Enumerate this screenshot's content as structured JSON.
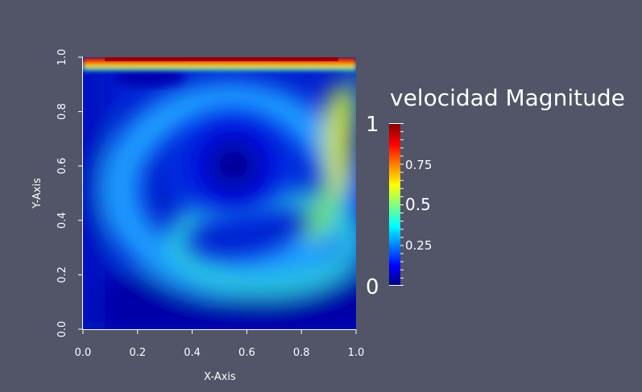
{
  "plot": {
    "x_axis_title": "X-Axis",
    "y_axis_title": "Y-Axis",
    "x_ticks": [
      "0.0",
      "0.2",
      "0.4",
      "0.6",
      "0.8",
      "1.0"
    ],
    "y_ticks": [
      "0.0",
      "0.2",
      "0.4",
      "0.6",
      "0.8",
      "1.0"
    ]
  },
  "colorbar": {
    "title": "velocidad Magnitude",
    "range_max_label": "1",
    "range_min_label": "0",
    "labels": [
      "0.75",
      "0.5",
      "0.25"
    ],
    "colormap": [
      "#00007f",
      "#0000ff",
      "#00ffff",
      "#ffff00",
      "#ff0000",
      "#7f0000"
    ]
  }
}
